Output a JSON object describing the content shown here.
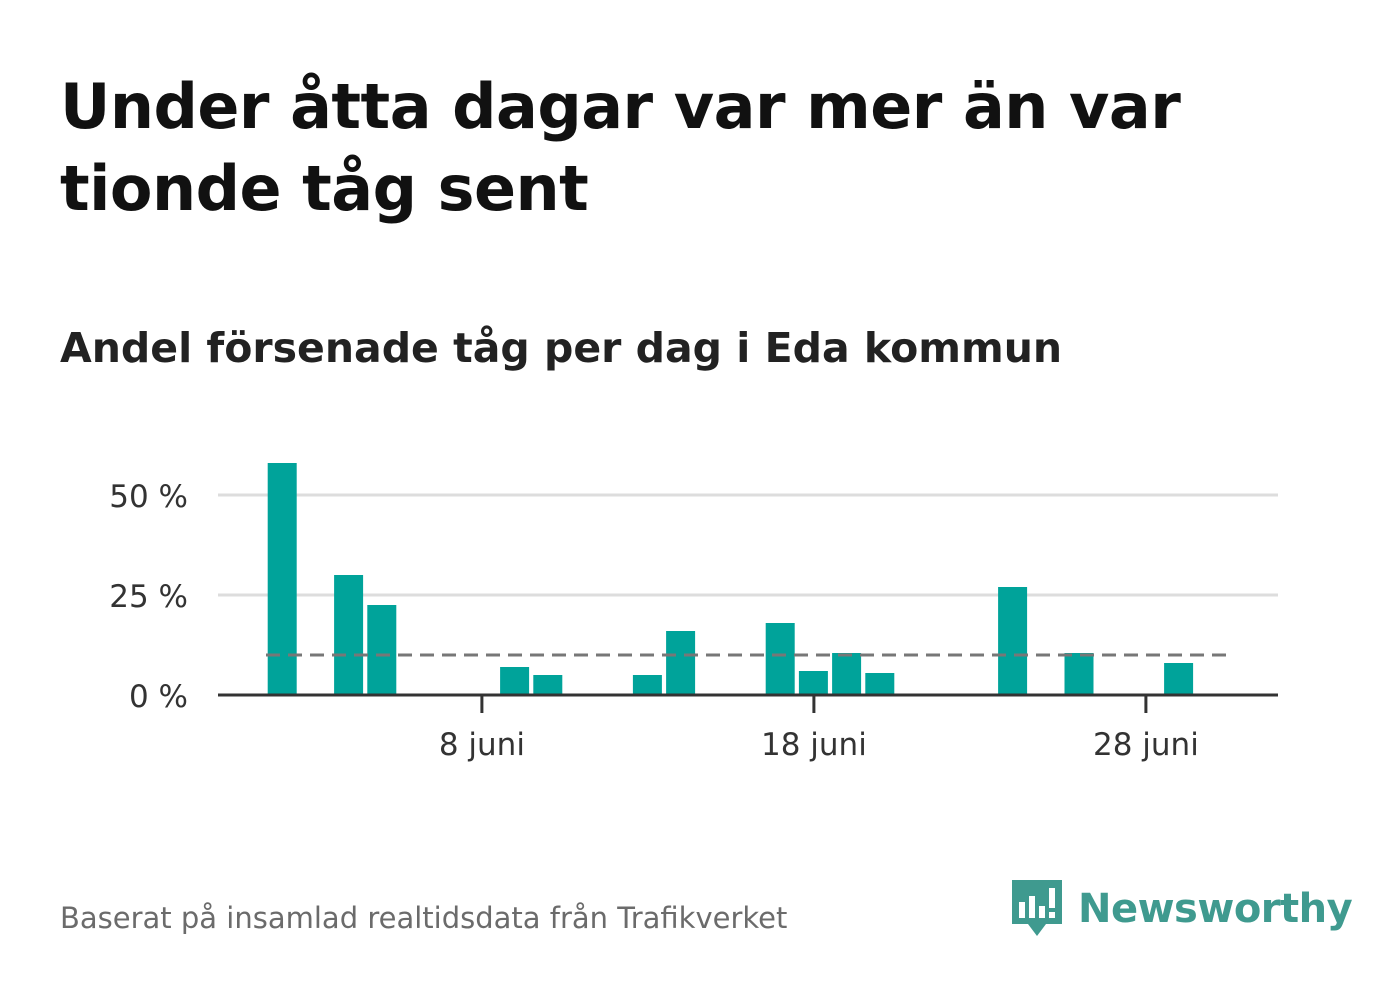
{
  "title": "Under åtta dagar var mer än var tionde tåg sent",
  "subtitle": "Andel försenade tåg per dag i Eda kommun",
  "source": "Baserat på insamlad realtidsdata från Trafikverket",
  "brand": {
    "name": "Newsworthy",
    "icon": "newsworthy-logo-icon",
    "color": "#3f9a8f"
  },
  "chart_data": {
    "type": "bar",
    "x_unit": "day of June",
    "x": [
      1,
      2,
      3,
      4,
      5,
      6,
      7,
      8,
      9,
      10,
      11,
      12,
      13,
      14,
      15,
      16,
      17,
      18,
      19,
      20,
      21,
      22,
      23,
      24,
      25,
      26,
      27,
      28,
      29,
      30
    ],
    "values": [
      0,
      58,
      0,
      30,
      22.5,
      0,
      0,
      0,
      7,
      5,
      0,
      0,
      5,
      16,
      0,
      0,
      18,
      6,
      10.5,
      5.5,
      0,
      0,
      0,
      27,
      0,
      10.5,
      0,
      0,
      8,
      0
    ],
    "x_ticks": [
      {
        "x": 8,
        "label": "8 juni"
      },
      {
        "x": 18,
        "label": "18 juni"
      },
      {
        "x": 28,
        "label": "28 juni"
      }
    ],
    "y_ticks": [
      {
        "value": 0,
        "label": "0 %"
      },
      {
        "value": 25,
        "label": "25 %"
      },
      {
        "value": 50,
        "label": "50 %"
      }
    ],
    "ylim": [
      0,
      60
    ],
    "reference_line": {
      "value": 10,
      "style": "dashed",
      "color": "#777777"
    },
    "bar_color": "#00a39a",
    "grid": true
  }
}
